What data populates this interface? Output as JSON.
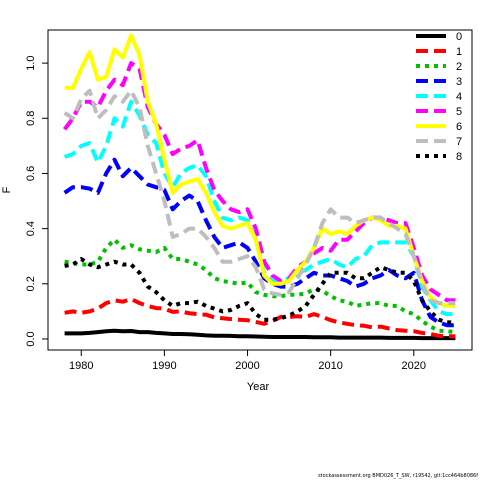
{
  "footer_text": "stockassessment.org BMD026_T_SW, r19542, git:1cc464b8086f",
  "chart_data": {
    "type": "line",
    "title": "",
    "xlabel": "Year",
    "ylabel": "F",
    "xlim": [
      1976,
      2027
    ],
    "ylim": [
      -0.04,
      1.12
    ],
    "xticks": [
      1980,
      1990,
      2000,
      2010,
      2020
    ],
    "yticks": [
      0.0,
      0.2,
      0.4,
      0.6,
      0.8,
      1.0
    ],
    "ytick_labels": [
      "0.0",
      "0.2",
      "0.4",
      "0.6",
      "0.8",
      "1.0"
    ],
    "grid": false,
    "legend_position": "top-right",
    "x": [
      1978,
      1979,
      1980,
      1981,
      1982,
      1983,
      1984,
      1985,
      1986,
      1987,
      1988,
      1989,
      1990,
      1991,
      1992,
      1993,
      1994,
      1995,
      1996,
      1997,
      1998,
      1999,
      2000,
      2001,
      2002,
      2003,
      2004,
      2005,
      2006,
      2007,
      2008,
      2009,
      2010,
      2011,
      2012,
      2013,
      2014,
      2015,
      2016,
      2017,
      2018,
      2019,
      2020,
      2021,
      2022,
      2023,
      2024,
      2025
    ],
    "series": [
      {
        "name": "0",
        "color": "#000000",
        "dash": "solid",
        "values": [
          0.02,
          0.02,
          0.02,
          0.022,
          0.025,
          0.028,
          0.03,
          0.028,
          0.029,
          0.025,
          0.025,
          0.022,
          0.02,
          0.018,
          0.018,
          0.017,
          0.015,
          0.013,
          0.012,
          0.012,
          0.011,
          0.01,
          0.01,
          0.009,
          0.008,
          0.007,
          0.007,
          0.007,
          0.007,
          0.007,
          0.006,
          0.006,
          0.006,
          0.005,
          0.005,
          0.005,
          0.005,
          0.005,
          0.005,
          0.004,
          0.004,
          0.004,
          0.004,
          0.003,
          0.003,
          0.003,
          0.003,
          0.003
        ]
      },
      {
        "name": "1",
        "color": "#ff0000",
        "dash": "dash",
        "values": [
          0.095,
          0.1,
          0.095,
          0.1,
          0.11,
          0.13,
          0.14,
          0.135,
          0.145,
          0.13,
          0.12,
          0.112,
          0.11,
          0.098,
          0.1,
          0.093,
          0.09,
          0.088,
          0.078,
          0.075,
          0.072,
          0.07,
          0.068,
          0.062,
          0.055,
          0.065,
          0.08,
          0.08,
          0.082,
          0.08,
          0.09,
          0.08,
          0.068,
          0.06,
          0.055,
          0.05,
          0.048,
          0.042,
          0.045,
          0.038,
          0.032,
          0.03,
          0.028,
          0.022,
          0.018,
          0.012,
          0.01,
          0.01
        ]
      },
      {
        "name": "2",
        "color": "#00c000",
        "dash": "dot",
        "values": [
          0.28,
          0.275,
          0.27,
          0.27,
          0.28,
          0.33,
          0.36,
          0.33,
          0.34,
          0.325,
          0.32,
          0.315,
          0.33,
          0.29,
          0.29,
          0.28,
          0.27,
          0.25,
          0.22,
          0.21,
          0.205,
          0.2,
          0.205,
          0.17,
          0.16,
          0.155,
          0.155,
          0.16,
          0.16,
          0.165,
          0.18,
          0.175,
          0.155,
          0.14,
          0.135,
          0.12,
          0.125,
          0.13,
          0.13,
          0.12,
          0.12,
          0.1,
          0.09,
          0.065,
          0.045,
          0.03,
          0.028,
          0.025
        ]
      },
      {
        "name": "3",
        "color": "#0000ff",
        "dash": "dash",
        "values": [
          0.53,
          0.55,
          0.55,
          0.545,
          0.53,
          0.6,
          0.65,
          0.59,
          0.62,
          0.59,
          0.56,
          0.55,
          0.54,
          0.47,
          0.5,
          0.52,
          0.5,
          0.43,
          0.37,
          0.33,
          0.34,
          0.35,
          0.33,
          0.28,
          0.22,
          0.2,
          0.19,
          0.19,
          0.2,
          0.22,
          0.24,
          0.23,
          0.23,
          0.22,
          0.21,
          0.19,
          0.2,
          0.22,
          0.23,
          0.25,
          0.23,
          0.22,
          0.24,
          0.14,
          0.08,
          0.06,
          0.05,
          0.05
        ]
      },
      {
        "name": "4",
        "color": "#00ffff",
        "dash": "dash",
        "values": [
          0.66,
          0.67,
          0.7,
          0.71,
          0.64,
          0.7,
          0.8,
          0.77,
          0.86,
          0.81,
          0.74,
          0.71,
          0.6,
          0.55,
          0.6,
          0.62,
          0.63,
          0.59,
          0.5,
          0.44,
          0.43,
          0.44,
          0.43,
          0.36,
          0.24,
          0.21,
          0.21,
          0.22,
          0.24,
          0.25,
          0.27,
          0.28,
          0.29,
          0.27,
          0.26,
          0.29,
          0.3,
          0.34,
          0.35,
          0.35,
          0.35,
          0.35,
          0.3,
          0.19,
          0.14,
          0.1,
          0.09,
          0.09
        ]
      },
      {
        "name": "5",
        "color": "#ff00ff",
        "dash": "dash",
        "values": [
          0.76,
          0.8,
          0.86,
          0.86,
          0.84,
          0.9,
          0.94,
          0.92,
          1.0,
          0.98,
          0.84,
          0.78,
          0.74,
          0.67,
          0.69,
          0.7,
          0.72,
          0.62,
          0.54,
          0.5,
          0.47,
          0.46,
          0.47,
          0.4,
          0.28,
          0.23,
          0.21,
          0.22,
          0.26,
          0.28,
          0.31,
          0.33,
          0.32,
          0.36,
          0.36,
          0.39,
          0.42,
          0.44,
          0.44,
          0.43,
          0.42,
          0.42,
          0.33,
          0.23,
          0.18,
          0.16,
          0.14,
          0.14
        ]
      },
      {
        "name": "6",
        "color": "#ffff00",
        "dash": "solid",
        "values": [
          0.91,
          0.91,
          0.98,
          1.04,
          0.94,
          0.95,
          1.05,
          1.02,
          1.1,
          1.03,
          0.86,
          0.78,
          0.65,
          0.53,
          0.56,
          0.57,
          0.58,
          0.53,
          0.46,
          0.41,
          0.4,
          0.41,
          0.42,
          0.36,
          0.23,
          0.2,
          0.2,
          0.21,
          0.25,
          0.28,
          0.33,
          0.4,
          0.38,
          0.39,
          0.38,
          0.41,
          0.43,
          0.44,
          0.43,
          0.41,
          0.41,
          0.4,
          0.3,
          0.21,
          0.15,
          0.13,
          0.12,
          0.12
        ]
      },
      {
        "name": "7",
        "color": "#bebebe",
        "dash": "dash",
        "values": [
          0.82,
          0.8,
          0.87,
          0.9,
          0.8,
          0.83,
          0.88,
          0.86,
          0.9,
          0.84,
          0.7,
          0.6,
          0.5,
          0.37,
          0.38,
          0.4,
          0.4,
          0.37,
          0.33,
          0.28,
          0.28,
          0.29,
          0.3,
          0.26,
          0.18,
          0.165,
          0.16,
          0.17,
          0.22,
          0.27,
          0.33,
          0.42,
          0.47,
          0.44,
          0.44,
          0.42,
          0.43,
          0.44,
          0.44,
          0.42,
          0.4,
          0.38,
          0.3,
          0.2,
          0.14,
          0.13,
          0.13,
          0.13
        ]
      },
      {
        "name": "8",
        "color": "#000000",
        "dash": "dot",
        "values": [
          0.265,
          0.27,
          0.29,
          0.27,
          0.26,
          0.27,
          0.28,
          0.27,
          0.27,
          0.24,
          0.19,
          0.17,
          0.14,
          0.12,
          0.13,
          0.13,
          0.135,
          0.12,
          0.11,
          0.1,
          0.105,
          0.12,
          0.13,
          0.09,
          0.07,
          0.07,
          0.075,
          0.085,
          0.1,
          0.12,
          0.16,
          0.2,
          0.24,
          0.24,
          0.24,
          0.22,
          0.22,
          0.24,
          0.26,
          0.25,
          0.24,
          0.24,
          0.21,
          0.14,
          0.1,
          0.07,
          0.06,
          0.06
        ]
      }
    ]
  }
}
